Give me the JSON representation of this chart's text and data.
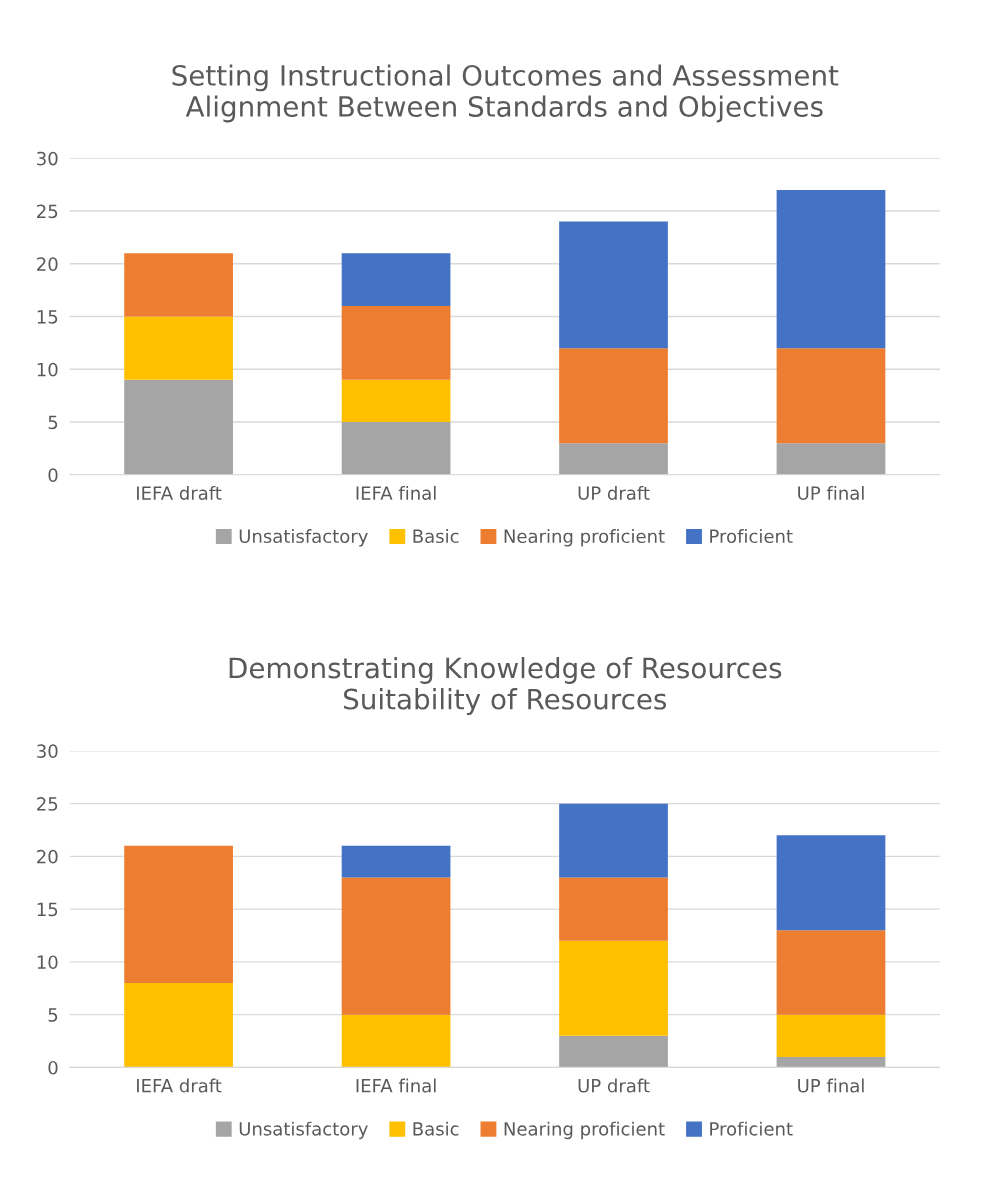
{
  "chart_data": [
    {
      "type": "bar",
      "stacked": true,
      "title": "Setting Instructional Outcomes and Assessment\nAlignment Between Standards and Objectives",
      "categories": [
        "IEFA draft",
        "IEFA final",
        "UP draft",
        "UP final"
      ],
      "series": [
        {
          "name": "Unsatisfactory",
          "color": "#a5a5a5",
          "values": [
            9,
            5,
            3,
            3
          ]
        },
        {
          "name": "Basic",
          "color": "#ffc000",
          "values": [
            6,
            4,
            0,
            0
          ]
        },
        {
          "name": "Nearing proficient",
          "color": "#ed7d31",
          "values": [
            6,
            7,
            9,
            9
          ]
        },
        {
          "name": "Proficient",
          "color": "#4472c4",
          "values": [
            0,
            5,
            12,
            15
          ]
        }
      ],
      "ylim": [
        0,
        30
      ],
      "yticks": [
        0,
        5,
        10,
        15,
        20,
        25,
        30
      ],
      "grid": "y",
      "legend": "bottom"
    },
    {
      "type": "bar",
      "stacked": true,
      "title": "Demonstrating Knowledge of Resources\nSuitability of Resources",
      "categories": [
        "IEFA draft",
        "IEFA final",
        "UP draft",
        "UP final"
      ],
      "series": [
        {
          "name": "Unsatisfactory",
          "color": "#a5a5a5",
          "values": [
            0,
            0,
            3,
            1
          ]
        },
        {
          "name": "Basic",
          "color": "#ffc000",
          "values": [
            8,
            5,
            9,
            4
          ]
        },
        {
          "name": "Nearing proficient",
          "color": "#ed7d31",
          "values": [
            13,
            13,
            6,
            8
          ]
        },
        {
          "name": "Proficient",
          "color": "#4472c4",
          "values": [
            0,
            3,
            7,
            9
          ]
        }
      ],
      "ylim": [
        0,
        30
      ],
      "yticks": [
        0,
        5,
        10,
        15,
        20,
        25,
        30
      ],
      "grid": "y",
      "legend": "bottom"
    }
  ]
}
